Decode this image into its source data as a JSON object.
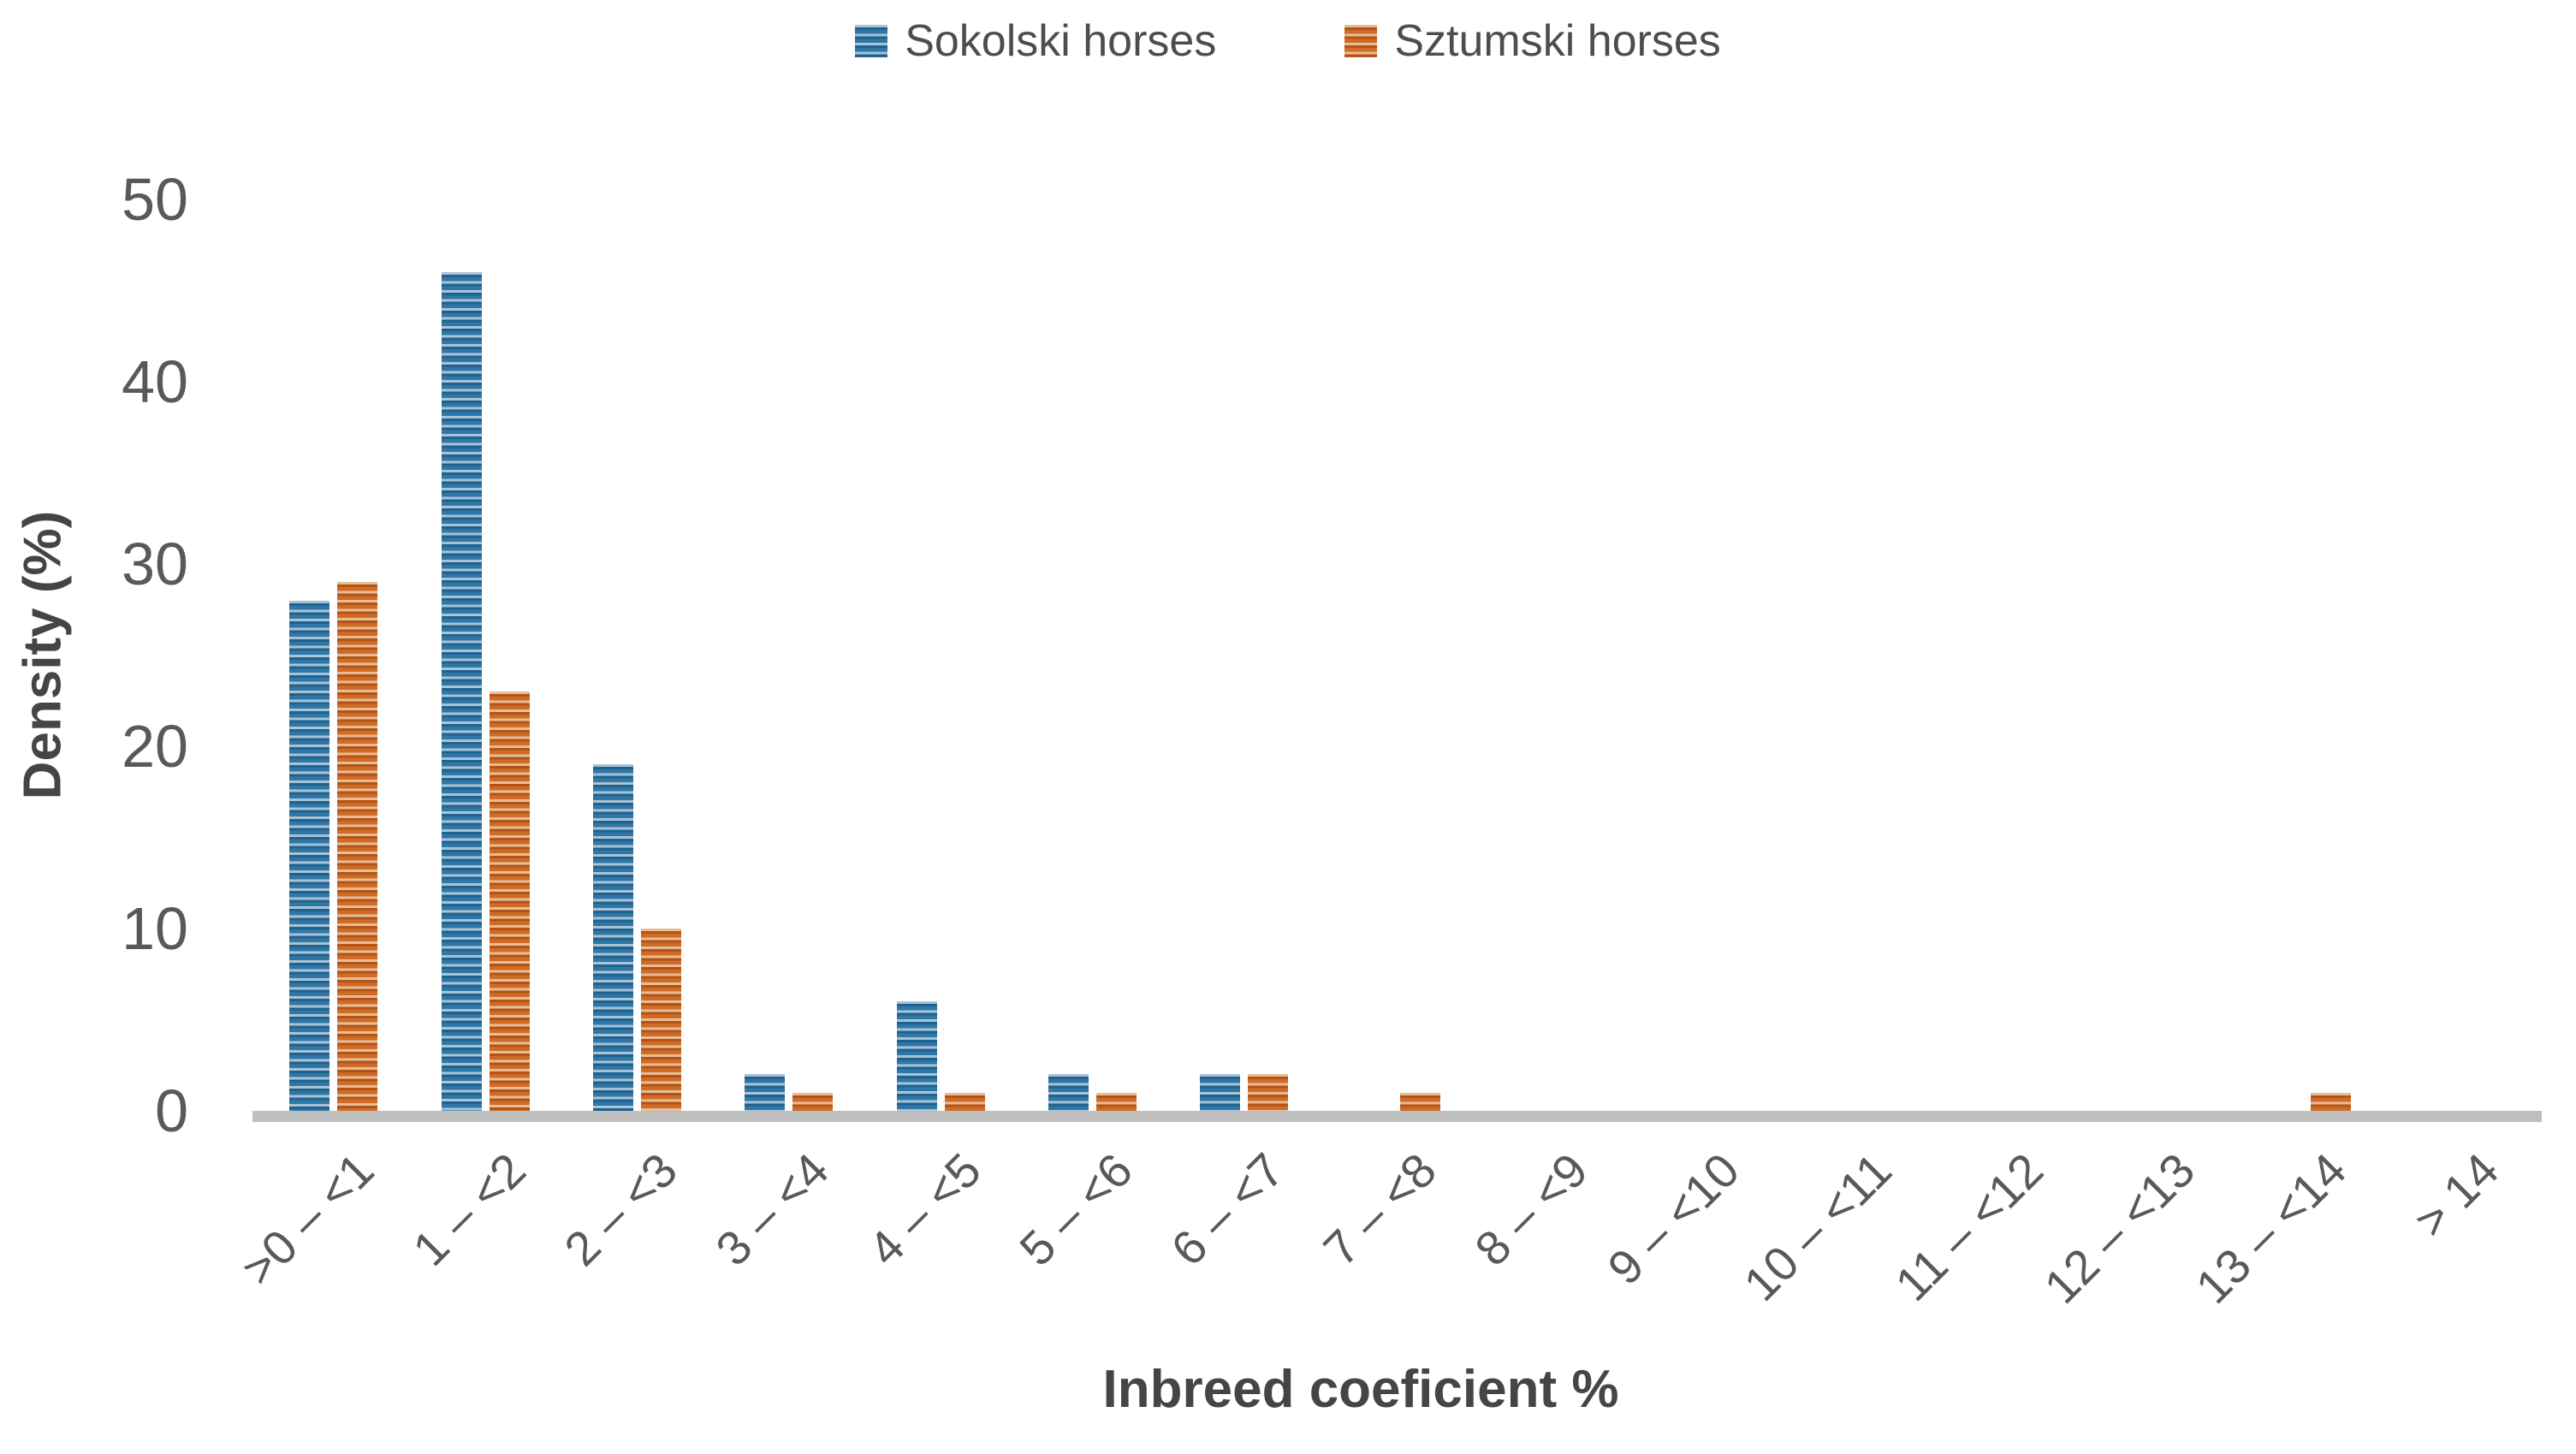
{
  "chart_data": {
    "type": "bar",
    "title": "",
    "categories": [
      ">0 – <1",
      "1 – <2",
      "2 – <3",
      "3 – <4",
      "4 – <5",
      "5 – <6",
      "6 – <7",
      "7 – <8",
      "8 – <9",
      "9 – <10",
      "10 – <11",
      "11 – <12",
      "12 – <13",
      "13 – <14",
      "> 14"
    ],
    "series": [
      {
        "name": "Sokolski horses",
        "color": "#2f77a6",
        "values": [
          28,
          46,
          19,
          2,
          6,
          2,
          2,
          0,
          0,
          0,
          0,
          0,
          0,
          0,
          0
        ]
      },
      {
        "name": "Sztumski horses",
        "color": "#d06b26",
        "values": [
          29,
          23,
          10,
          1,
          1,
          1,
          2,
          1,
          0,
          0,
          0,
          0,
          0,
          1,
          0
        ]
      }
    ],
    "xlabel": "Inbreed coeficient %",
    "ylabel": "Density (%)",
    "ylim": [
      0,
      50
    ],
    "yticks": [
      0,
      10,
      20,
      30,
      40,
      50
    ],
    "grid": false,
    "legend_position": "top",
    "axis_line_color": "#bfbfbf",
    "tick_text_color": "#595959",
    "title_text_color": "#454545",
    "bar_pattern": "horizontal-stripes"
  }
}
